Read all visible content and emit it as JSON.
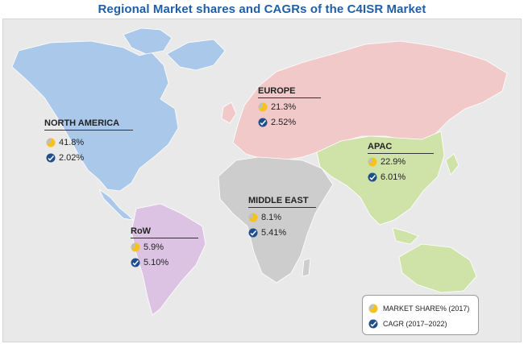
{
  "title": "Regional Market shares and CAGRs of the C4ISR Market",
  "icons": {
    "share": "pie-chart-icon",
    "cagr": "growth-check-icon"
  },
  "colors": {
    "north_america": "#aac8e9",
    "europe": "#f2c9c9",
    "apac": "#cfe3a8",
    "middle_east": "#cdcdcd",
    "row": "#dcc3e3",
    "share_icon": "#f6c21b",
    "cagr_icon": "#1f4e8c",
    "title": "#1f5fa8"
  },
  "regions": [
    {
      "id": "north-america",
      "name": "NORTH AMERICA",
      "share": "41.8%",
      "cagr": "2.02%"
    },
    {
      "id": "europe",
      "name": "EUROPE",
      "share": "21.3%",
      "cagr": "2.52%"
    },
    {
      "id": "apac",
      "name": "APAC",
      "share": "22.9%",
      "cagr": "6.01%"
    },
    {
      "id": "middle-east",
      "name": "MIDDLE EAST",
      "share": "8.1%",
      "cagr": "5.41%"
    },
    {
      "id": "row",
      "name": "RoW",
      "share": "5.9%",
      "cagr": "5.10%"
    }
  ],
  "legend": {
    "share_label": "MARKET SHARE% (2017)",
    "cagr_label": "CAGR (2017–2022)"
  }
}
